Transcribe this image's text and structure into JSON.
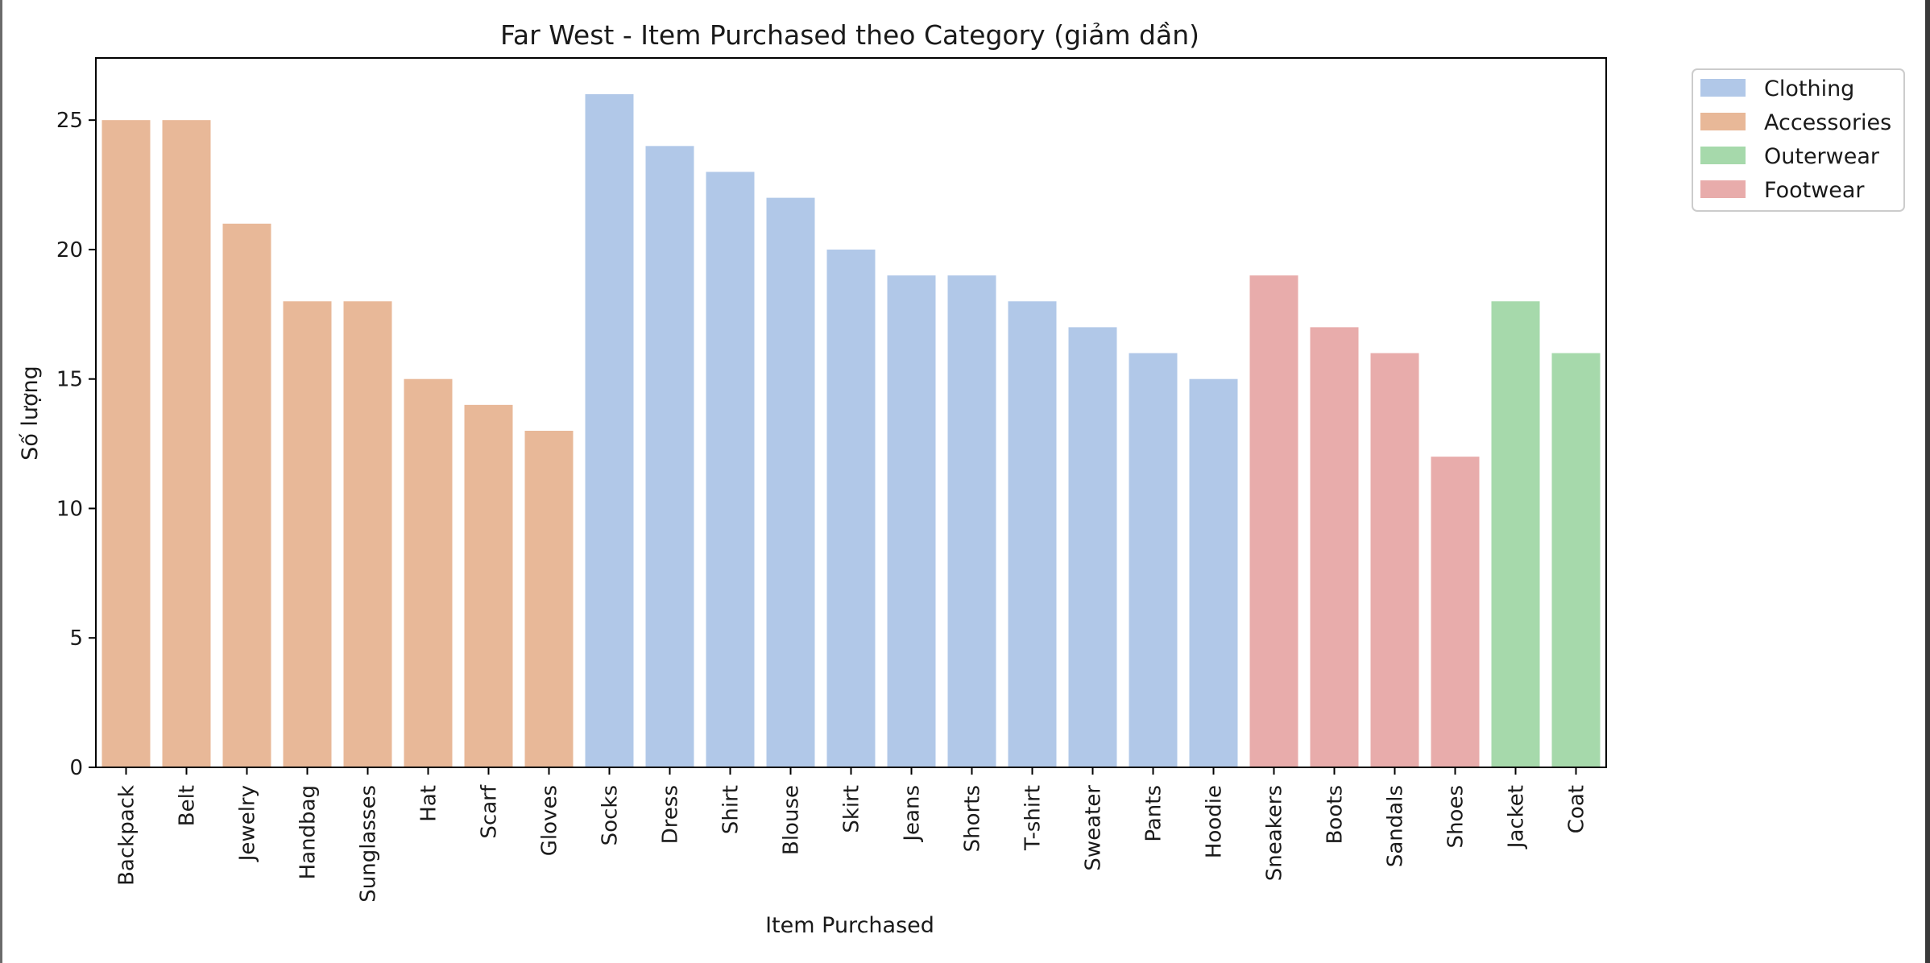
{
  "chart_data": {
    "type": "bar",
    "title": "Far West - Item Purchased theo Category (giảm dần)",
    "xlabel": "Item Purchased",
    "ylabel": "Số lượng",
    "ylim": [
      0,
      27.4
    ],
    "yticks": [
      0,
      5,
      10,
      15,
      20,
      25
    ],
    "grid": false,
    "legend_placement": "outside-top-right",
    "categories": [
      "Backpack",
      "Belt",
      "Jewelry",
      "Handbag",
      "Sunglasses",
      "Hat",
      "Scarf",
      "Gloves",
      "Socks",
      "Dress",
      "Shirt",
      "Blouse",
      "Skirt",
      "Jeans",
      "Shorts",
      "T-shirt",
      "Sweater",
      "Pants",
      "Hoodie",
      "Sneakers",
      "Boots",
      "Sandals",
      "Shoes",
      "Jacket",
      "Coat"
    ],
    "values": [
      25,
      25,
      21,
      18,
      18,
      15,
      14,
      13,
      26,
      24,
      23,
      22,
      20,
      19,
      19,
      18,
      17,
      16,
      15,
      19,
      17,
      16,
      12,
      18,
      16
    ],
    "groups": [
      "Accessories",
      "Accessories",
      "Accessories",
      "Accessories",
      "Accessories",
      "Accessories",
      "Accessories",
      "Accessories",
      "Clothing",
      "Clothing",
      "Clothing",
      "Clothing",
      "Clothing",
      "Clothing",
      "Clothing",
      "Clothing",
      "Clothing",
      "Clothing",
      "Clothing",
      "Footwear",
      "Footwear",
      "Footwear",
      "Footwear",
      "Outerwear",
      "Outerwear"
    ],
    "legend": [
      {
        "name": "Clothing",
        "color": "#b1c8e8"
      },
      {
        "name": "Accessories",
        "color": "#e8b898"
      },
      {
        "name": "Outerwear",
        "color": "#a6d9ab"
      },
      {
        "name": "Footwear",
        "color": "#e8acab"
      }
    ]
  }
}
